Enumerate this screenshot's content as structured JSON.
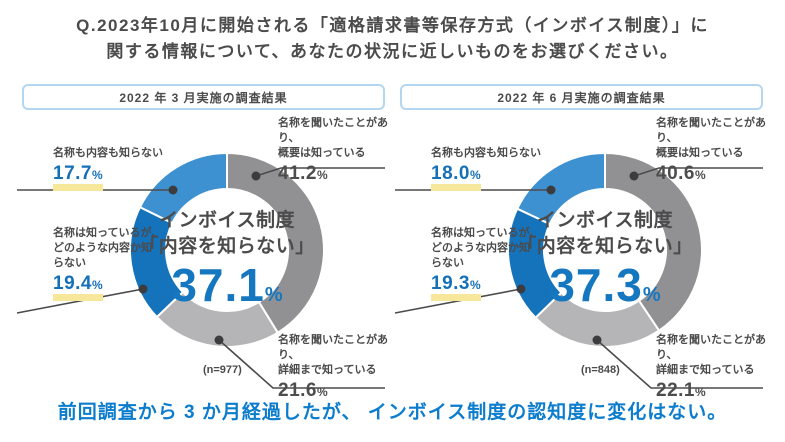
{
  "percent_sign": "%",
  "title": {
    "line1": "Q.2023年10月に開始される「適格請求書等保存方式（インボイス制度）」に",
    "line2": "関する情報について、あなたの状況に近しいものをお選びください。"
  },
  "colors": {
    "blue": "#1573bc",
    "light_blue": "#3e91d1",
    "gray": "#919194",
    "light_gray": "#b5b5b7",
    "highlight_yellow": "#f6e79b",
    "conclusion_blue": "#0c7ccd",
    "text_dark": "#4b4b4b"
  },
  "panels": [
    {
      "header": "2022 年 3 月実施の調査結果",
      "sample": "(n=977)",
      "center": {
        "line1": "インボイス制度",
        "line2": "「内容を知らない」",
        "value": "37.1",
        "unit": "%"
      },
      "segments": [
        {
          "label_lines": [
            "名称を聞いたことがあり、",
            "概要は知っている"
          ],
          "value": 41.2,
          "display": "41.2",
          "color": "#919194",
          "highlight": false
        },
        {
          "label_lines": [
            "名称を聞いたことがあり、",
            "詳細まで知っている"
          ],
          "value": 21.6,
          "display": "21.6",
          "color": "#b5b5b7",
          "highlight": false
        },
        {
          "label_lines": [
            "名称は知っているが、",
            "どのような内容か知",
            "らない"
          ],
          "value": 19.4,
          "display": "19.4",
          "color": "#1573bc",
          "highlight": true
        },
        {
          "label_lines": [
            "名称も内容も知らない"
          ],
          "value": 17.7,
          "display": "17.7",
          "color": "#3e91d1",
          "highlight": true
        }
      ]
    },
    {
      "header": "2022 年 6 月実施の調査結果",
      "sample": "(n=848)",
      "center": {
        "line1": "インボイス制度",
        "line2": "「内容を知らない」",
        "value": "37.3",
        "unit": "%"
      },
      "segments": [
        {
          "label_lines": [
            "名称を聞いたことがあり、",
            "概要は知っている"
          ],
          "value": 40.6,
          "display": "40.6",
          "color": "#919194",
          "highlight": false
        },
        {
          "label_lines": [
            "名称を聞いたことがあり、",
            "詳細まで知っている"
          ],
          "value": 22.1,
          "display": "22.1",
          "color": "#b5b5b7",
          "highlight": false
        },
        {
          "label_lines": [
            "名称は知っているが、",
            "どのような内容か知",
            "らない"
          ],
          "value": 19.3,
          "display": "19.3",
          "color": "#1573bc",
          "highlight": true
        },
        {
          "label_lines": [
            "名称も内容も知らない"
          ],
          "value": 18.0,
          "display": "18.0",
          "color": "#3e91d1",
          "highlight": true
        }
      ]
    }
  ],
  "conclusion": "前回調査から 3 か月経過したが、 インボイス制度の認知度に変化はない。",
  "chart_data": [
    {
      "type": "pie",
      "subtype": "donut",
      "title": "2022 年 3 月実施の調査結果",
      "n": 977,
      "categories": [
        "名称を聞いたことがあり、概要は知っている",
        "名称を聞いたことがあり、詳細まで知っている",
        "名称は知っているが、どのような内容か知らない",
        "名称も内容も知らない"
      ],
      "values": [
        41.2,
        21.6,
        19.4,
        17.7
      ],
      "colors": [
        "#919194",
        "#b5b5b7",
        "#1573bc",
        "#3e91d1"
      ],
      "center_label": "インボイス制度「内容を知らない」",
      "center_value": 37.1,
      "start_angle": "top",
      "direction": "clockwise",
      "legend_position": "callout-labels"
    },
    {
      "type": "pie",
      "subtype": "donut",
      "title": "2022 年 6 月実施の調査結果",
      "n": 848,
      "categories": [
        "名称を聞いたことがあり、概要は知っている",
        "名称を聞いたことがあり、詳細まで知っている",
        "名称は知っているが、どのような内容か知らない",
        "名称も内容も知らない"
      ],
      "values": [
        40.6,
        22.1,
        19.3,
        18.0
      ],
      "colors": [
        "#919194",
        "#b5b5b7",
        "#1573bc",
        "#3e91d1"
      ],
      "center_label": "インボイス制度「内容を知らない」",
      "center_value": 37.3,
      "start_angle": "top",
      "direction": "clockwise",
      "legend_position": "callout-labels"
    }
  ]
}
